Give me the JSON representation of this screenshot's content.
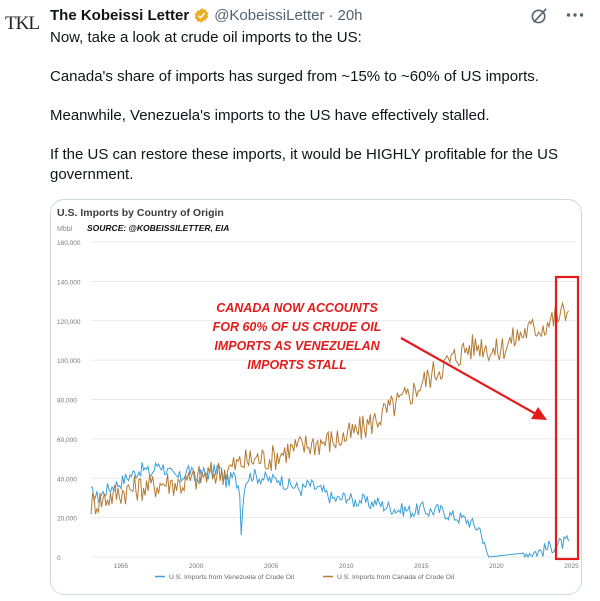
{
  "tweet": {
    "avatar_text": "TKL",
    "author_name": "The Kobeissi Letter",
    "handle": "@KobeissiLetter",
    "separator": "·",
    "time": "20h",
    "paragraphs": [
      "Now, take a look at crude oil imports to the US:",
      "Canada's share of imports has surged from ~15% to ~60% of US imports.",
      "Meanwhile, Venezuela's imports to the US have effectively stalled.",
      "If the US can restore these imports, it would be HIGHLY profitable for the US government."
    ]
  },
  "colors": {
    "verified_badge": "#e8b021",
    "canada_series": "#b47a32",
    "venezuela_series": "#3a9fd6",
    "annotation": "#e31b1b"
  },
  "icons": {
    "grok": "grok-icon",
    "more": "more-icon",
    "verified": "verified-badge-icon"
  },
  "chart_data": {
    "type": "line",
    "title": "U.S. Imports by Country of Origin",
    "unit": "Mbbl",
    "source": "SOURCE: @KOBEISSILETTER, EIA",
    "annotation": [
      "CANADA NOW ACCOUNTS",
      "FOR 60% OF US CRUDE OIL",
      "IMPORTS AS VENEZUELAN",
      "IMPORTS STALL"
    ],
    "ylim": [
      0,
      160000
    ],
    "yticks": [
      "0",
      "20,000",
      "40,000",
      "60,000",
      "80,000",
      "100,000",
      "120,000",
      "140,000",
      "160,000"
    ],
    "ytick_values": [
      0,
      20000,
      40000,
      60000,
      80000,
      100000,
      120000,
      140000,
      160000
    ],
    "xlim": [
      1993,
      2025.3
    ],
    "xticks": [
      "1995",
      "2000",
      "2005",
      "2010",
      "2015",
      "2020",
      "2025"
    ],
    "xtick_values": [
      1995,
      2000,
      2005,
      2010,
      2015,
      2020,
      2025
    ],
    "grid": true,
    "legend": "bottom",
    "series": [
      {
        "name": "U.S. Imports from Venezuela of Crude Oil",
        "x": [
          1993,
          1993.5,
          1994,
          1994.5,
          1995,
          1995.5,
          1996,
          1996.5,
          1997,
          1997.5,
          1998,
          1998.5,
          1999,
          1999.5,
          2000,
          2000.5,
          2001,
          2001.5,
          2002,
          2002.5,
          2002.9,
          2003.0,
          2003.2,
          2003.4,
          2003.8,
          2004,
          2004.5,
          2005,
          2005.5,
          2006,
          2006.5,
          2007,
          2007.5,
          2008,
          2008.5,
          2009,
          2009.5,
          2010,
          2010.5,
          2011,
          2011.5,
          2012,
          2012.5,
          2013,
          2013.5,
          2014,
          2014.5,
          2015,
          2015.5,
          2016,
          2016.5,
          2017,
          2017.5,
          2018,
          2018.5,
          2019,
          2019.1,
          2019.3,
          2019.5,
          2023.0,
          2023.5,
          2024,
          2024.5,
          2024.8
        ],
        "values": [
          33000,
          30000,
          34000,
          36000,
          38000,
          41000,
          43000,
          45000,
          42000,
          48000,
          44000,
          41000,
          40000,
          45000,
          39000,
          43000,
          42000,
          46000,
          38000,
          41000,
          35000,
          13000,
          36000,
          40000,
          42000,
          41000,
          40000,
          39000,
          40000,
          37000,
          36000,
          34000,
          37000,
          35000,
          33000,
          30000,
          29000,
          31000,
          28000,
          29000,
          27000,
          28000,
          26000,
          25000,
          24000,
          24000,
          23000,
          25000,
          23000,
          24000,
          23000,
          21000,
          20000,
          19000,
          16000,
          14000,
          8000,
          3000,
          0,
          3000,
          5000,
          6000,
          7000,
          8000
        ]
      },
      {
        "name": "U.S. Imports from Canada of Crude Oil",
        "x": [
          1993,
          1994,
          1995,
          1996,
          1997,
          1998,
          1999,
          2000,
          2001,
          2002,
          2003,
          2004,
          2005,
          2006,
          2007,
          2008,
          2009,
          2010,
          2011,
          2012,
          2013,
          2014,
          2015,
          2016,
          2017,
          2018,
          2019,
          2020,
          2021,
          2022,
          2023,
          2024,
          2024.8
        ],
        "values": [
          27000,
          30000,
          33000,
          35000,
          36000,
          38000,
          37000,
          40000,
          42000,
          44000,
          48000,
          50000,
          50000,
          54000,
          56000,
          58000,
          59000,
          61000,
          65000,
          70000,
          76000,
          81000,
          88000,
          95000,
          100000,
          106000,
          108000,
          104000,
          110000,
          115000,
          117000,
          122000,
          125000
        ]
      }
    ]
  }
}
